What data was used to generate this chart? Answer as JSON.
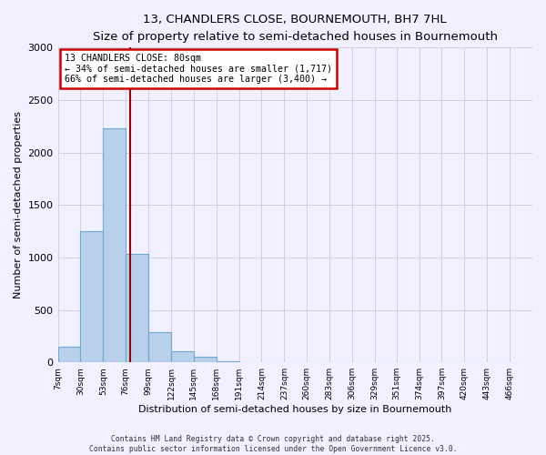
{
  "title": "13, CHANDLERS CLOSE, BOURNEMOUTH, BH7 7HL",
  "subtitle": "Size of property relative to semi-detached houses in Bournemouth",
  "xlabel": "Distribution of semi-detached houses by size in Bournemouth",
  "ylabel": "Number of semi-detached properties",
  "bin_labels": [
    "7sqm",
    "30sqm",
    "53sqm",
    "76sqm",
    "99sqm",
    "122sqm",
    "145sqm",
    "168sqm",
    "191sqm",
    "214sqm",
    "237sqm",
    "260sqm",
    "283sqm",
    "306sqm",
    "329sqm",
    "351sqm",
    "374sqm",
    "397sqm",
    "420sqm",
    "443sqm",
    "466sqm"
  ],
  "bin_edges": [
    7,
    30,
    53,
    76,
    99,
    122,
    145,
    168,
    191,
    214,
    237,
    260,
    283,
    306,
    329,
    351,
    374,
    397,
    420,
    443,
    466
  ],
  "bar_values": [
    150,
    1250,
    2230,
    1030,
    290,
    105,
    50,
    10,
    0,
    0,
    0,
    0,
    0,
    0,
    0,
    0,
    0,
    0,
    0,
    0
  ],
  "bar_color": "#b8d0ea",
  "bar_edge_color": "#6aaad4",
  "vline_x": 80,
  "vline_color": "#990000",
  "annotation_title": "13 CHANDLERS CLOSE: 80sqm",
  "annotation_line1": "← 34% of semi-detached houses are smaller (1,717)",
  "annotation_line2": "66% of semi-detached houses are larger (3,400) →",
  "annotation_box_color": "#ffffff",
  "annotation_box_edge": "#cc0000",
  "ylim": [
    0,
    3000
  ],
  "yticks": [
    0,
    500,
    1000,
    1500,
    2000,
    2500,
    3000
  ],
  "footer_line1": "Contains HM Land Registry data © Crown copyright and database right 2025.",
  "footer_line2": "Contains public sector information licensed under the Open Government Licence v3.0.",
  "bg_color": "#f0f0ff"
}
